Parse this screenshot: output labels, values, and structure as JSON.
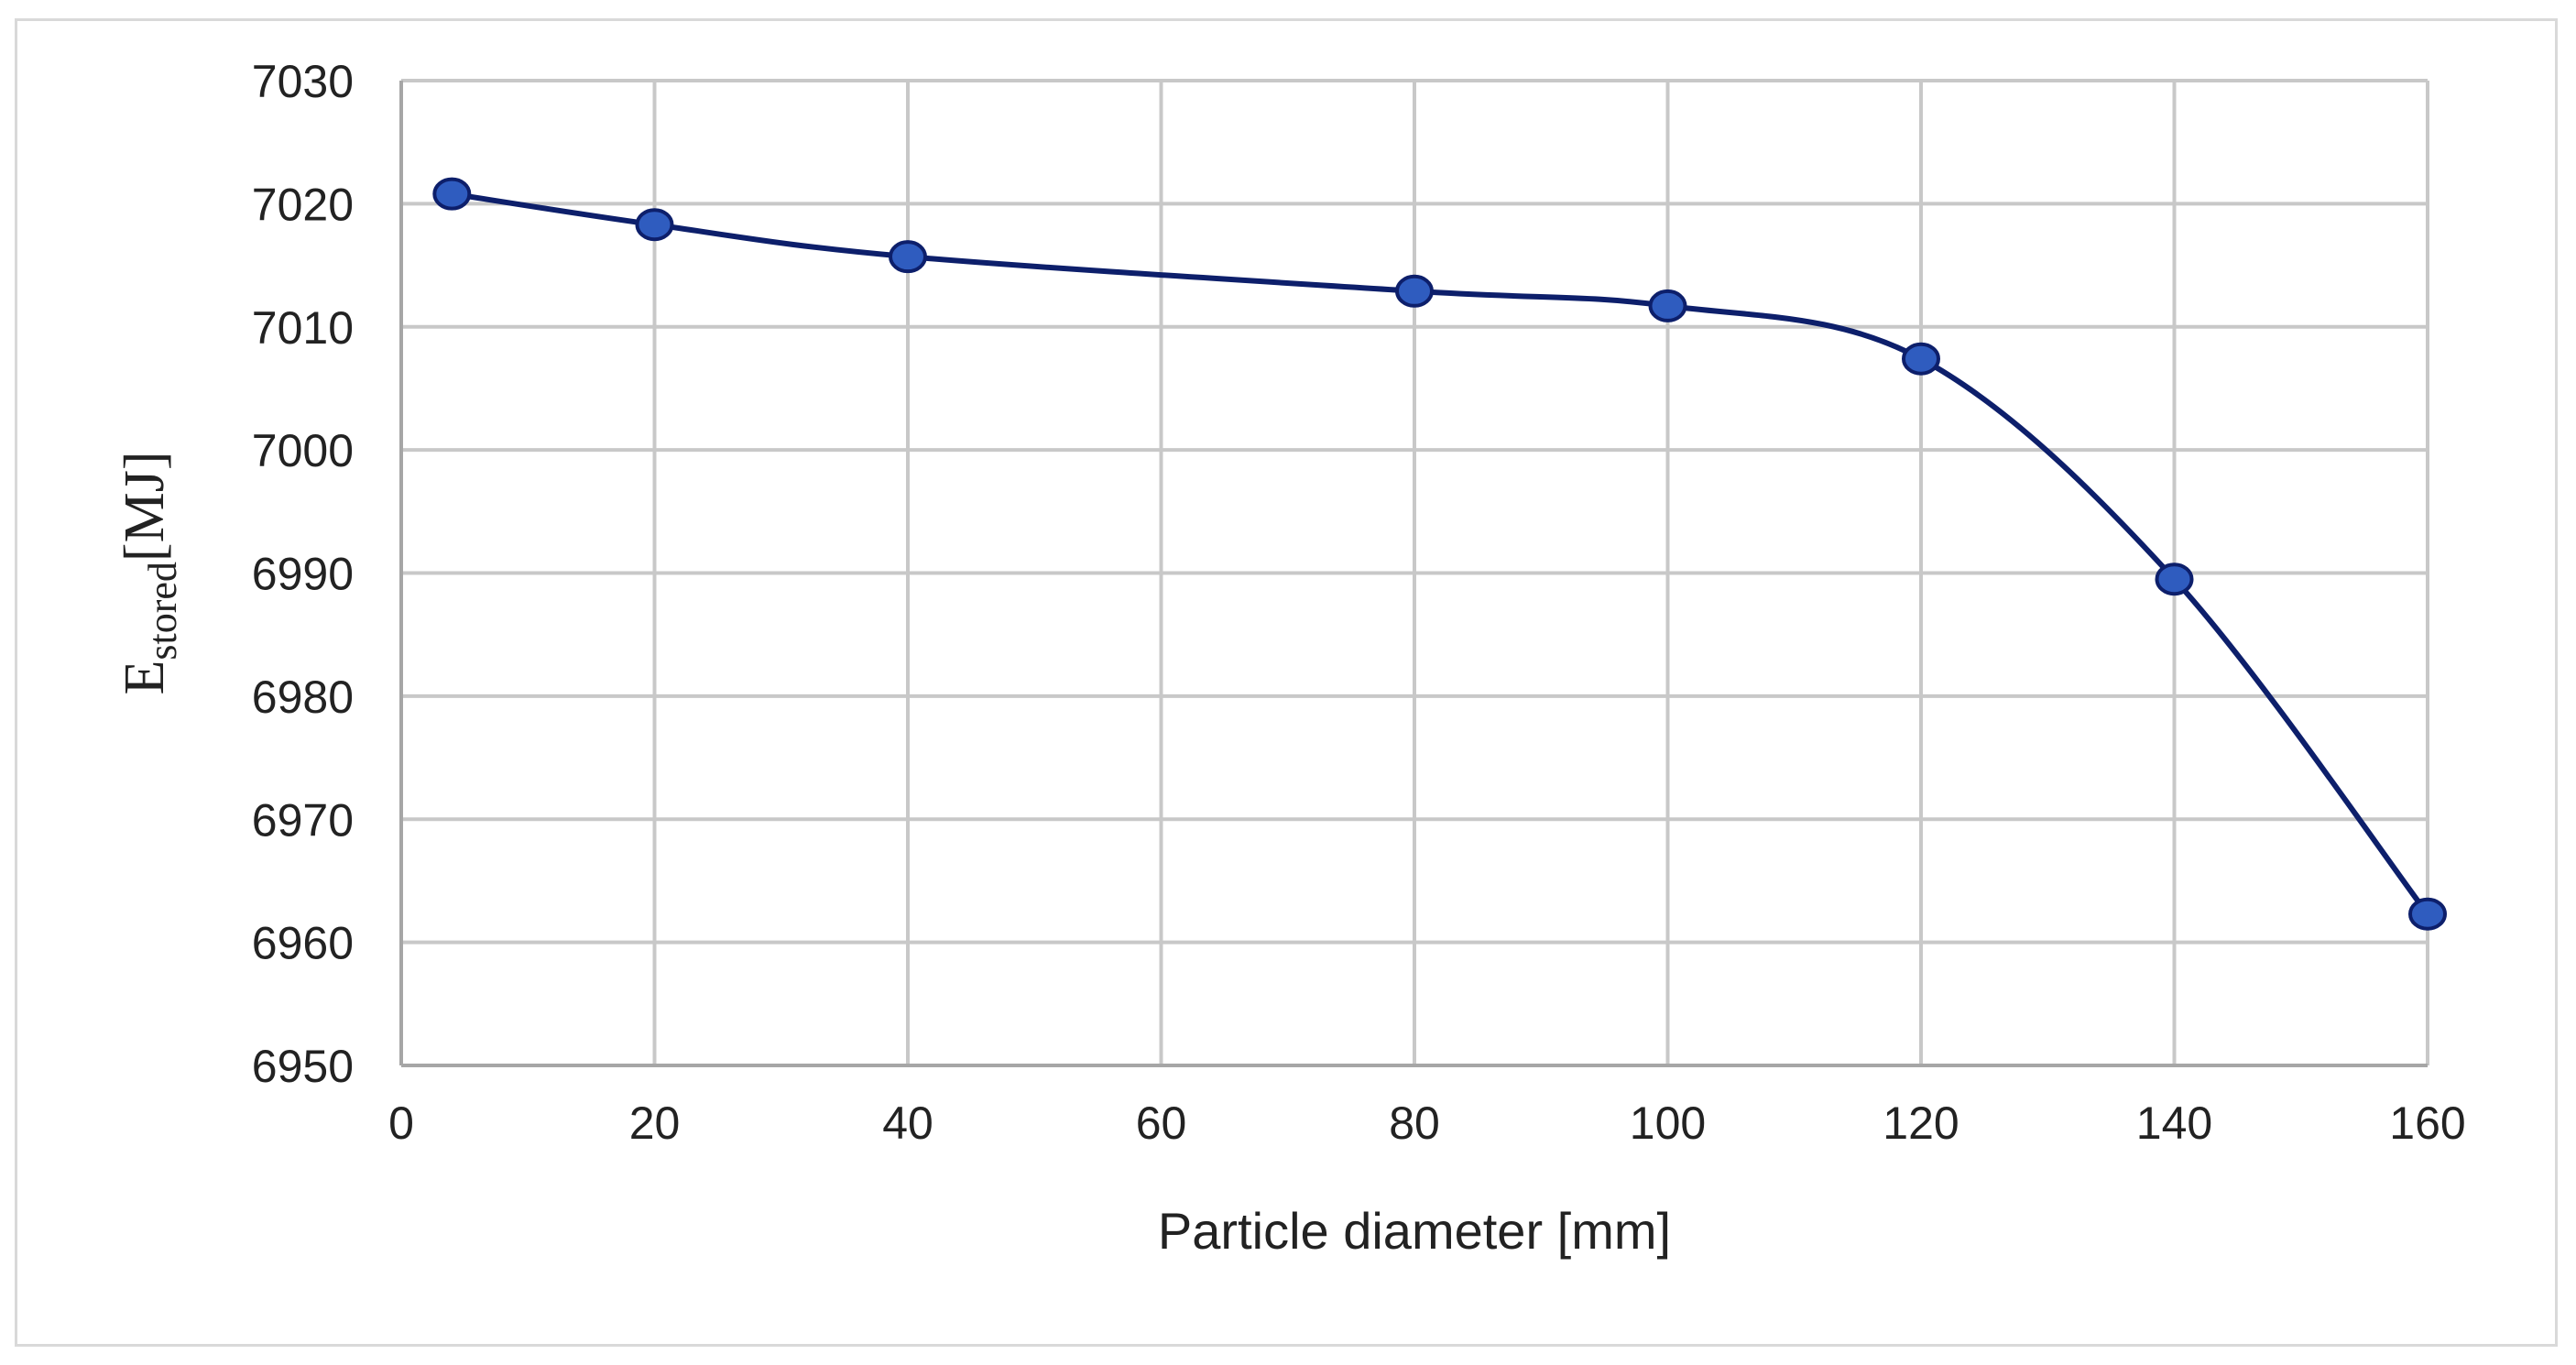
{
  "chart_data": {
    "type": "line",
    "xlabel": "Particle diameter [mm]",
    "ylabel": {
      "base": "E",
      "subscript": "stored",
      "unit": "[MJ]"
    },
    "xlim": [
      0,
      160
    ],
    "ylim": [
      6950,
      7030
    ],
    "xticks": [
      0,
      20,
      40,
      60,
      80,
      100,
      120,
      140,
      160
    ],
    "yticks": [
      6950,
      6960,
      6970,
      6980,
      6990,
      7000,
      7010,
      7020,
      7030
    ],
    "grid": true,
    "smooth": true,
    "legend": "none",
    "line_color": "#0d1f6b",
    "marker_color": "#2f5cbf",
    "grid_color": "#c8c8c8",
    "series": [
      {
        "x": [
          4,
          20,
          40,
          80,
          100,
          120,
          140,
          160
        ],
        "y": [
          7020.8,
          7018.3,
          7015.7,
          7012.9,
          7011.7,
          7007.4,
          6989.5,
          6962.3
        ]
      }
    ]
  }
}
